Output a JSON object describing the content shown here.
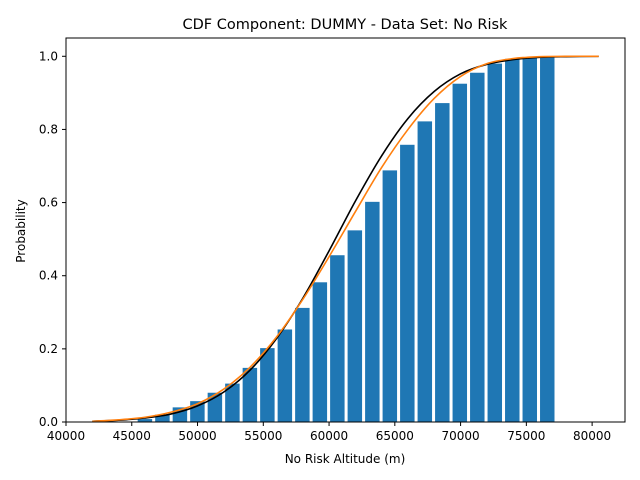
{
  "chart_data": {
    "type": "bar",
    "title": "CDF Component: DUMMY - Data Set: No Risk",
    "xlabel": "No Risk Altitude (m)",
    "ylabel": "Probability",
    "xlim": [
      40000,
      82500
    ],
    "ylim": [
      0,
      1.05
    ],
    "x_ticks": [
      40000,
      45000,
      50000,
      55000,
      60000,
      65000,
      70000,
      75000,
      80000
    ],
    "y_ticks": [
      0.0,
      0.2,
      0.4,
      0.6,
      0.8,
      1.0
    ],
    "x_tick_labels": [
      "40000",
      "45000",
      "50000",
      "55000",
      "60000",
      "65000",
      "70000",
      "75000",
      "80000"
    ],
    "y_tick_labels": [
      "0.0",
      "0.2",
      "0.4",
      "0.6",
      "0.8",
      "1.0"
    ],
    "grid": false,
    "bar_color": "#1f77b4",
    "bar_width": 1100,
    "bars": {
      "x": [
        46000,
        47330,
        48660,
        49990,
        51320,
        52650,
        53980,
        55310,
        56640,
        57970,
        59300,
        60630,
        61960,
        63290,
        64620,
        65950,
        67280,
        68610,
        69940,
        71270,
        72600,
        73930,
        75260,
        76590
      ],
      "values": [
        0.008,
        0.02,
        0.04,
        0.057,
        0.08,
        0.105,
        0.148,
        0.202,
        0.253,
        0.312,
        0.382,
        0.456,
        0.524,
        0.602,
        0.688,
        0.758,
        0.822,
        0.872,
        0.925,
        0.955,
        0.98,
        0.993,
        0.997,
        1.0
      ]
    },
    "series": [
      {
        "color": "#000000",
        "x": [
          42000,
          44000,
          46000,
          48000,
          50000,
          52000,
          54000,
          56000,
          58000,
          60000,
          62000,
          64000,
          66000,
          68000,
          70000,
          72000,
          74000,
          76000,
          78000,
          80500
        ],
        "values": [
          0.002,
          0.005,
          0.011,
          0.022,
          0.044,
          0.082,
          0.142,
          0.228,
          0.338,
          0.468,
          0.604,
          0.728,
          0.83,
          0.904,
          0.952,
          0.978,
          0.991,
          0.997,
          0.999,
          1.0
        ]
      },
      {
        "color": "#ff7f0e",
        "x": [
          42000,
          44000,
          46000,
          48000,
          50000,
          52000,
          54000,
          56000,
          58000,
          60000,
          62000,
          64000,
          66000,
          68000,
          70000,
          72000,
          74000,
          75000,
          76000,
          78000,
          80500
        ],
        "values": [
          0.002,
          0.006,
          0.013,
          0.027,
          0.05,
          0.09,
          0.15,
          0.232,
          0.335,
          0.452,
          0.575,
          0.696,
          0.8,
          0.885,
          0.945,
          0.98,
          0.994,
          0.997,
          0.999,
          1.0,
          1.0
        ]
      }
    ]
  }
}
